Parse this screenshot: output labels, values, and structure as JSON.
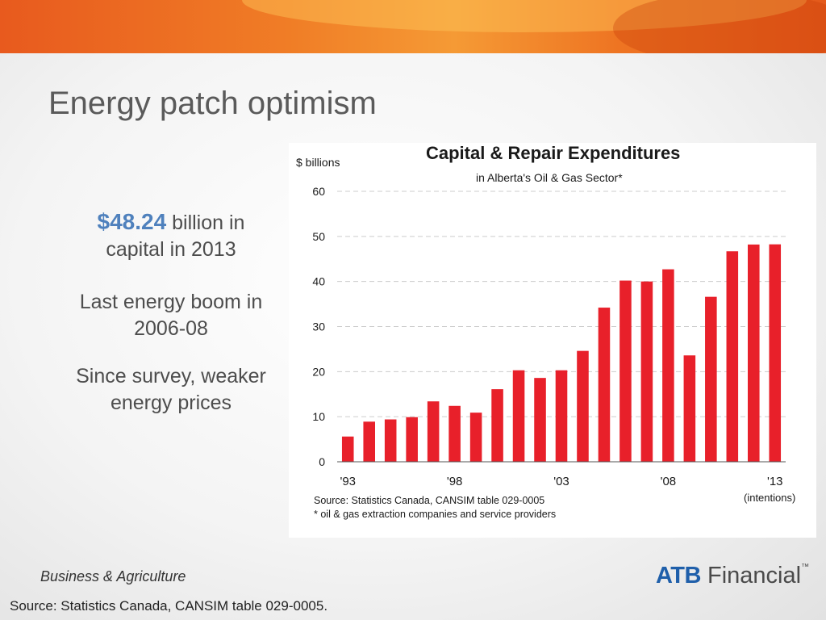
{
  "slide": {
    "title": "Energy patch optimism",
    "highlight_value": "$48.24",
    "highlight_rest_line1": " billion in",
    "highlight_line2": "capital in 2013",
    "point2_line1": "Last energy boom in",
    "point2_line2": "2006-08",
    "point3_line1": "Since survey, weaker",
    "point3_line2": "energy prices",
    "footer_section": "Business & Agriculture",
    "footer_source": "Source:  Statistics Canada, CANSIM table 029-0005.",
    "logo_atb": "ATB",
    "logo_financial": " Financial",
    "logo_tm": "™"
  },
  "colors": {
    "bar": "#e8202a",
    "highlight": "#4f81bd",
    "grid": "#cccccc"
  },
  "chart_data": {
    "type": "bar",
    "title": "Capital & Repair Expenditures",
    "subtitle": "in Alberta's Oil & Gas Sector*",
    "ylabel": "$ billions",
    "ylim": [
      0,
      60
    ],
    "yticks": [
      "0",
      "10",
      "20",
      "30",
      "40",
      "50",
      "60"
    ],
    "grid": true,
    "categories": [
      "1993",
      "1994",
      "1995",
      "1996",
      "1997",
      "1998",
      "1999",
      "2000",
      "2001",
      "2002",
      "2003",
      "2004",
      "2005",
      "2006",
      "2007",
      "2008",
      "2009",
      "2010",
      "2011",
      "2012",
      "2013"
    ],
    "values": [
      5.6,
      8.9,
      9.4,
      9.9,
      13.4,
      12.4,
      10.9,
      16.1,
      20.3,
      18.6,
      20.3,
      24.6,
      34.2,
      40.2,
      40.0,
      42.7,
      23.6,
      36.6,
      46.7,
      48.2,
      48.24
    ],
    "xtick_labels": [
      {
        "index": 0,
        "label": "'93"
      },
      {
        "index": 5,
        "label": "'98"
      },
      {
        "index": 10,
        "label": "'03"
      },
      {
        "index": 15,
        "label": "'08"
      },
      {
        "index": 20,
        "label": "'13"
      }
    ],
    "last_bar_note": "(intentions)",
    "source_note": "Source: Statistics Canada, CANSIM table 029-0005",
    "footnote": "* oil & gas extraction companies and service providers"
  }
}
